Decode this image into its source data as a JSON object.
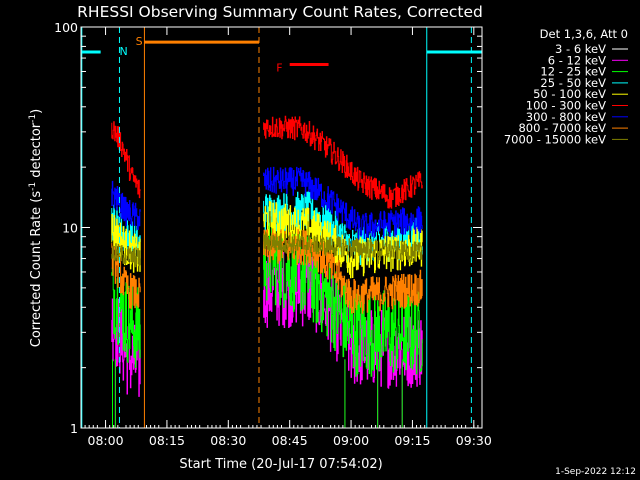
{
  "chart_data": {
    "type": "line",
    "title": "RHESSI Observing Summary Count Rates, Corrected",
    "xlabel": "Start Time (20-Jul-17 07:54:02)",
    "ylabel_main": "Corrected Count Rate (s",
    "ylabel_sup1": "-1",
    "ylabel_mid": " detector",
    "ylabel_sup2": "-1",
    "ylabel_end": ")",
    "yscale": "log",
    "ylim": [
      1,
      100
    ],
    "xlim_minutes": [
      0,
      98
    ],
    "x_ticks": [
      {
        "label": "08:00",
        "t": 6
      },
      {
        "label": "08:15",
        "t": 21
      },
      {
        "label": "08:30",
        "t": 36
      },
      {
        "label": "08:45",
        "t": 51
      },
      {
        "label": "09:00",
        "t": 66
      },
      {
        "label": "09:15",
        "t": 81
      },
      {
        "label": "09:30",
        "t": 96
      }
    ],
    "y_ticks": [
      {
        "label": "1",
        "v": 1
      },
      {
        "label": "10",
        "v": 10
      },
      {
        "label": "100",
        "v": 100
      }
    ],
    "legend_header": "Det 1,3,6, Att 0",
    "legend_position": "top-right",
    "series": [
      {
        "name": "3 - 6 keV",
        "color": "#000000",
        "start": 7.4,
        "end": 14.5,
        "start2": 44.5,
        "end2": 83.5,
        "levels": [
          [
            0,
            9
          ],
          [
            0.5,
            7
          ],
          [
            1,
            6
          ]
        ],
        "levels2": [
          [
            0,
            9
          ],
          [
            0.25,
            10
          ],
          [
            0.55,
            7
          ],
          [
            1,
            9
          ]
        ],
        "noise": 0.12
      },
      {
        "name": "6 - 12 keV",
        "color": "#ff00ff",
        "start": 7.4,
        "end": 14.5,
        "start2": 44.5,
        "end2": 83.5,
        "levels": [
          [
            0,
            3.5
          ],
          [
            0.5,
            2.3
          ],
          [
            1,
            2
          ]
        ],
        "levels2": [
          [
            0,
            5
          ],
          [
            0.3,
            5
          ],
          [
            0.55,
            2.5
          ],
          [
            1,
            2.5
          ]
        ],
        "noise": 0.2
      },
      {
        "name": "12 - 25 keV",
        "color": "#00ff00",
        "start": 7.4,
        "end": 14.5,
        "start2": 44.5,
        "end2": 83.5,
        "levels": [
          [
            0,
            5
          ],
          [
            0.5,
            3.5
          ],
          [
            1,
            3
          ]
        ],
        "levels2": [
          [
            0,
            7
          ],
          [
            0.25,
            6
          ],
          [
            0.55,
            3
          ],
          [
            1,
            3
          ]
        ],
        "noise": 0.22
      },
      {
        "name": "25 - 50 keV",
        "color": "#00ffff",
        "start": 7.4,
        "end": 14.5,
        "start2": 44.5,
        "end2": 83.5,
        "levels": [
          [
            0,
            11
          ],
          [
            0.5,
            9
          ],
          [
            1,
            8
          ]
        ],
        "levels2": [
          [
            0,
            12
          ],
          [
            0.3,
            12
          ],
          [
            0.55,
            8
          ],
          [
            1,
            9
          ]
        ],
        "noise": 0.1
      },
      {
        "name": "50 - 100 keV",
        "color": "#ffff00",
        "start": 7.4,
        "end": 14.5,
        "start2": 44.5,
        "end2": 83.5,
        "levels": [
          [
            0,
            10
          ],
          [
            0.5,
            8
          ],
          [
            1,
            7
          ]
        ],
        "levels2": [
          [
            0,
            11
          ],
          [
            0.3,
            10
          ],
          [
            0.55,
            7
          ],
          [
            1,
            8
          ]
        ],
        "noise": 0.1
      },
      {
        "name": "100 - 300 keV",
        "color": "#ff0000",
        "start": 7.4,
        "end": 14.5,
        "start2": 44.5,
        "end2": 83.5,
        "levels": [
          [
            0,
            32
          ],
          [
            0.3,
            27
          ],
          [
            0.7,
            18
          ],
          [
            1,
            15
          ]
        ],
        "levels2": [
          [
            0,
            32
          ],
          [
            0.25,
            31
          ],
          [
            0.6,
            17
          ],
          [
            0.8,
            14
          ],
          [
            1,
            17
          ]
        ],
        "noise": 0.06
      },
      {
        "name": "300 - 800 keV",
        "color": "#0000ff",
        "start": 7.4,
        "end": 14.5,
        "start2": 44.5,
        "end2": 83.5,
        "levels": [
          [
            0,
            15
          ],
          [
            0.5,
            12
          ],
          [
            1,
            11
          ]
        ],
        "levels2": [
          [
            0,
            17
          ],
          [
            0.25,
            17
          ],
          [
            0.6,
            10
          ],
          [
            1,
            11
          ]
        ],
        "noise": 0.07
      },
      {
        "name": "800 - 7000 keV",
        "color": "#ff8000",
        "start": 7.4,
        "end": 14.5,
        "start2": 44.5,
        "end2": 83.5,
        "levels": [
          [
            0,
            7
          ],
          [
            0.5,
            5
          ],
          [
            1,
            4.5
          ]
        ],
        "levels2": [
          [
            0,
            8
          ],
          [
            0.3,
            8
          ],
          [
            0.55,
            4.5
          ],
          [
            1,
            5
          ]
        ],
        "noise": 0.09
      },
      {
        "name": "7000 - 15000 keV",
        "color": "#808000",
        "start": 7.4,
        "end": 14.5,
        "start2": 44.5,
        "end2": 83.5,
        "levels": [
          [
            0,
            7.5
          ],
          [
            1,
            7
          ]
        ],
        "levels2": [
          [
            0,
            8.5
          ],
          [
            1,
            7.5
          ]
        ],
        "noise": 0.05
      }
    ],
    "annotations": [
      {
        "kind": "bar",
        "color": "#00ffff",
        "t0": 0,
        "t1": 4.8,
        "v": 75
      },
      {
        "kind": "bar",
        "color": "#00ffff",
        "t0": 84.5,
        "t1": 98,
        "v": 75
      },
      {
        "kind": "bar",
        "color": "#ff8000",
        "t0": 15.5,
        "t1": 43.5,
        "v": 84
      },
      {
        "kind": "bar",
        "color": "#ff0000",
        "t0": 51,
        "t1": 60.5,
        "v": 65
      },
      {
        "kind": "vline",
        "color": "#00ffff",
        "t": 0.2,
        "dash": false
      },
      {
        "kind": "vline",
        "color": "#00ffff",
        "t": 9.4,
        "dash": true
      },
      {
        "kind": "vline",
        "color": "#00ffff",
        "t": 84.5,
        "dash": false
      },
      {
        "kind": "vline",
        "color": "#00ffff",
        "t": 95.4,
        "dash": true
      },
      {
        "kind": "vline",
        "color": "#ff8000",
        "t": 15.5,
        "dash": false
      },
      {
        "kind": "vline",
        "color": "#ff8000",
        "t": 43.5,
        "dash": true
      },
      {
        "kind": "label",
        "color": "#00ffff",
        "t": 10.4,
        "v": 75,
        "text": "N"
      },
      {
        "kind": "label",
        "color": "#ff8000",
        "t": 14.2,
        "v": 84,
        "text": "S"
      },
      {
        "kind": "label",
        "color": "#ff0000",
        "t": 48.5,
        "v": 62,
        "text": "F"
      }
    ]
  },
  "footer_timestamp": "1-Sep-2022 12:12"
}
